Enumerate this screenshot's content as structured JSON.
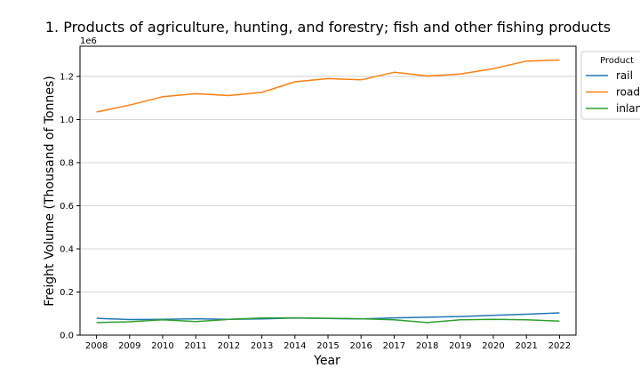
{
  "chart_data": {
    "type": "line",
    "title": "1. Products of agriculture, hunting, and forestry; fish and other fishing products",
    "xlabel": "Year",
    "ylabel": "Freight Volume (Thousand of Tonnes)",
    "y_offset_label": "1e6",
    "y_scale": 1000000,
    "ylim": [
      0,
      1340000
    ],
    "yticks": [
      0,
      200000,
      400000,
      600000,
      800000,
      1000000,
      1200000
    ],
    "ytick_labels": [
      "0.0",
      "0.2",
      "0.4",
      "0.6",
      "0.8",
      "1.0",
      "1.2"
    ],
    "grid": "horizontal",
    "legend_title": "Product",
    "legend_position": "right",
    "x": [
      2008,
      2009,
      2010,
      2011,
      2012,
      2013,
      2014,
      2015,
      2016,
      2017,
      2018,
      2019,
      2020,
      2021,
      2022
    ],
    "series": [
      {
        "name": "rail",
        "color": "#1f77b4",
        "values": [
          78000,
          72000,
          73000,
          76000,
          73000,
          75000,
          79000,
          77000,
          75000,
          80000,
          83000,
          86000,
          92000,
          97000,
          103000
        ]
      },
      {
        "name": "road",
        "color": "#ff7f0e",
        "values": [
          1035000,
          1067000,
          1106000,
          1120000,
          1111000,
          1126000,
          1175000,
          1190000,
          1184000,
          1219000,
          1202000,
          1211000,
          1236000,
          1271000,
          1276000
        ]
      },
      {
        "name": "inland",
        "color": "#2ca02c",
        "values": [
          58000,
          62000,
          71000,
          63000,
          73000,
          79000,
          80000,
          78000,
          76000,
          71000,
          58000,
          71000,
          73000,
          71000,
          65000
        ]
      }
    ]
  }
}
